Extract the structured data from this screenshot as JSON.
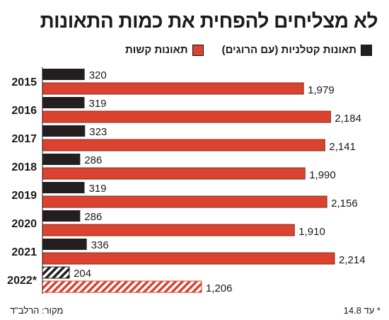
{
  "title": "לא מצליחים להפחית את כמות התאונות",
  "legend": {
    "fatal": "תאונות קטלניות (עם הרוגים)",
    "severe": "תאונות קשות"
  },
  "colors": {
    "fatal": "#231f20",
    "severe": "#d9432f"
  },
  "footer": {
    "note": "* עד 14.8",
    "source": "מקור: הרלב\"ד"
  },
  "chart_data": {
    "type": "bar",
    "orientation": "horizontal",
    "categories": [
      "2015",
      "2016",
      "2017",
      "2018",
      "2019",
      "2020",
      "2021",
      "2022*"
    ],
    "series": [
      {
        "name": "תאונות קטלניות (עם הרוגים)",
        "values": [
          320,
          319,
          323,
          286,
          319,
          286,
          336,
          204
        ]
      },
      {
        "name": "תאונות קשות",
        "values": [
          1979,
          2184,
          2141,
          1990,
          2156,
          1910,
          2214,
          1206
        ]
      }
    ],
    "data_labels": [
      [
        "320",
        "319",
        "323",
        "286",
        "319",
        "286",
        "336",
        "204"
      ],
      [
        "1,979",
        "2,184",
        "2,141",
        "1,990",
        "2,156",
        "1,910",
        "2,214",
        "1,206"
      ]
    ],
    "partial_category": "2022*",
    "xlim": [
      0,
      2214
    ],
    "legend_position": "top-right",
    "grid": false
  }
}
